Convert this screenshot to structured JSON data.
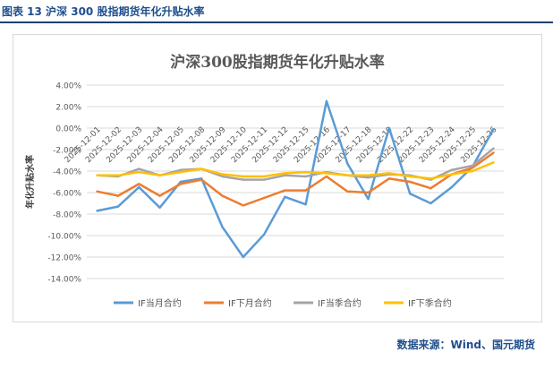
{
  "figure": {
    "caption": "图表 13  沪深 300 股指期货年化升贴水率",
    "source": "数据来源：Wind、国元期货"
  },
  "chart_data": {
    "type": "line",
    "title": "沪深300股指期货年化升贴水率",
    "xlabel": "",
    "ylabel": "年化升贴水率",
    "categories": [
      "2025-12-01",
      "2025-12-02",
      "2025-12-03",
      "2025-12-04",
      "2025-12-05",
      "2025-12-08",
      "2025-12-09",
      "2025-12-10",
      "2025-12-11",
      "2025-12-12",
      "2025-12-15",
      "2025-12-16",
      "2025-12-17",
      "2025-12-18",
      "2025-12-19",
      "2025-12-22",
      "2025-12-23",
      "2025-12-24",
      "2025-12-25",
      "2025-12-26"
    ],
    "ylim": [
      -14,
      4
    ],
    "yticks": [
      4,
      2,
      0,
      -2,
      -4,
      -6,
      -8,
      -10,
      -12,
      -14
    ],
    "ytick_labels": [
      "4.00%",
      "2.00%",
      "0.00%",
      "-2.00%",
      "-4.00%",
      "-6.00%",
      "-8.00%",
      "-10.00%",
      "-12.00%",
      "-14.00%"
    ],
    "grid": true,
    "legend_position": "bottom",
    "series": [
      {
        "name": "IF当月合约",
        "color": "#5b9bd5",
        "values": [
          -7.7,
          -7.3,
          -5.5,
          -7.4,
          -5.0,
          -4.7,
          -9.2,
          -12.0,
          -9.9,
          -6.4,
          -7.1,
          2.5,
          -3.3,
          -6.6,
          0.0,
          -6.1,
          -7.0,
          -5.5,
          -3.6,
          -0.1
        ]
      },
      {
        "name": "IF下月合约",
        "color": "#ed7d31",
        "values": [
          -5.9,
          -6.3,
          -5.2,
          -6.3,
          -5.2,
          -4.8,
          -6.3,
          -7.2,
          -6.5,
          -5.8,
          -5.8,
          -4.5,
          -5.9,
          -6.0,
          -4.7,
          -5.0,
          -5.6,
          -4.3,
          -3.7,
          -2.3
        ]
      },
      {
        "name": "IF当季合约",
        "color": "#a5a5a5",
        "values": [
          -4.4,
          -4.5,
          -3.8,
          -4.4,
          -3.9,
          -3.8,
          -4.5,
          -4.8,
          -4.8,
          -4.4,
          -4.5,
          -4.1,
          -4.4,
          -4.6,
          -4.3,
          -4.4,
          -4.8,
          -3.9,
          -3.5,
          -1.9
        ]
      },
      {
        "name": "IF下季合约",
        "color": "#ffc000",
        "values": [
          -4.4,
          -4.4,
          -4.1,
          -4.4,
          -4.1,
          -3.8,
          -4.3,
          -4.5,
          -4.5,
          -4.2,
          -4.1,
          -4.2,
          -4.4,
          -4.4,
          -4.2,
          -4.5,
          -4.7,
          -4.3,
          -4.0,
          -3.2
        ]
      }
    ]
  }
}
